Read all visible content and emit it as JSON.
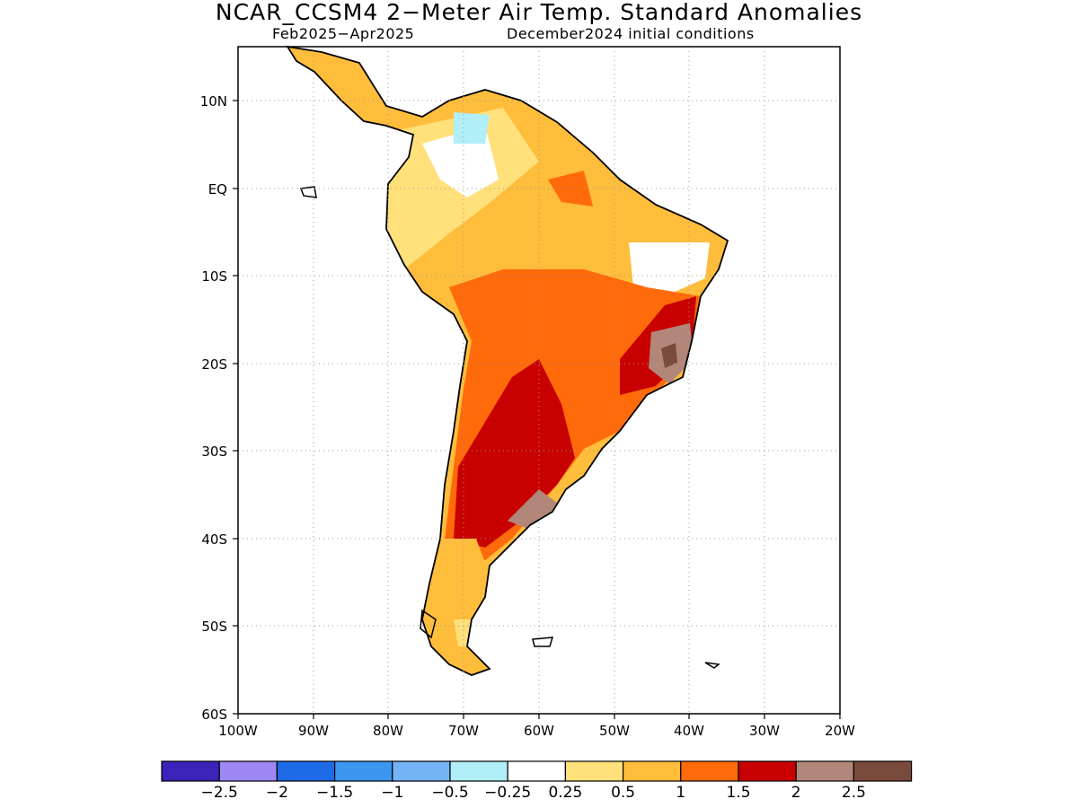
{
  "title": "NCAR_CCSM4 2−Meter Air Temp. Standard Anomalies",
  "subtitle_left": "Feb2025−Apr2025",
  "subtitle_right": "December2024 initial conditions",
  "lat_ticks": [
    "10N",
    "EQ",
    "10S",
    "20S",
    "30S",
    "40S",
    "50S",
    "60S"
  ],
  "lon_ticks": [
    "100W",
    "90W",
    "80W",
    "70W",
    "60W",
    "50W",
    "40W",
    "30W",
    "20W"
  ],
  "colorbar": {
    "colors": [
      "#3b22b8",
      "#9d88f5",
      "#1f6ae6",
      "#3b96f0",
      "#74b4f5",
      "#b0eef8",
      "#ffffff",
      "#ffe07a",
      "#ffbd3c",
      "#ff6a0a",
      "#c80000",
      "#b2877a",
      "#7a4b3c"
    ],
    "labels": [
      "−2.5",
      "−2",
      "−1.5",
      "−1",
      "−0.5",
      "−0.25",
      "0.25",
      "0.5",
      "1",
      "1.5",
      "2",
      "2.5"
    ]
  }
}
